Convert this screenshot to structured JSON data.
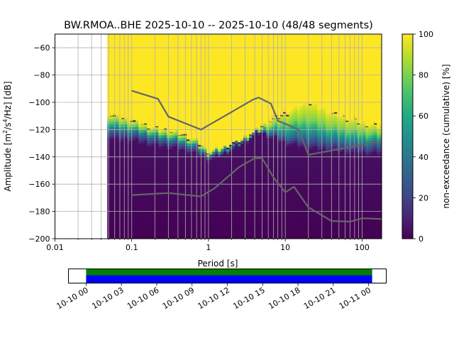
{
  "chart_data": {
    "type": "heatmap",
    "title": "BW.RMOA..BHE   2025-10-10 -- 2025-10-10  (48/48 segments)",
    "xlabel": "Period [s]",
    "ylabel": "Amplitude [m²/s⁴/Hz] [dB]",
    "x_scale": "log",
    "xlim": [
      0.01,
      180
    ],
    "ylim": [
      -200,
      -50
    ],
    "x_ticks": [
      {
        "v": 0.01,
        "label": "0.01"
      },
      {
        "v": 0.1,
        "label": "0.1"
      },
      {
        "v": 1,
        "label": "1"
      },
      {
        "v": 10,
        "label": "10"
      },
      {
        "v": 100,
        "label": "100"
      }
    ],
    "y_ticks": [
      {
        "v": -60,
        "label": "−60"
      },
      {
        "v": -80,
        "label": "−80"
      },
      {
        "v": -100,
        "label": "−100"
      },
      {
        "v": -120,
        "label": "−120"
      },
      {
        "v": -140,
        "label": "−140"
      },
      {
        "v": -160,
        "label": "−160"
      },
      {
        "v": -180,
        "label": "−180"
      },
      {
        "v": -200,
        "label": "−200"
      }
    ],
    "data_min_period": 0.048,
    "grid": true,
    "colorbar": {
      "label": "non-exceedance (cumulative) [%]",
      "range": [
        0,
        100
      ],
      "ticks": [
        {
          "v": 0,
          "label": "0"
        },
        {
          "v": 20,
          "label": "20"
        },
        {
          "v": 40,
          "label": "40"
        },
        {
          "v": 60,
          "label": "60"
        },
        {
          "v": 80,
          "label": "80"
        },
        {
          "v": 100,
          "label": "100"
        }
      ]
    },
    "distribution_boundaries": {
      "x": [
        0.048,
        0.06,
        0.1,
        0.2,
        0.4,
        0.7,
        1.0,
        1.5,
        2.5,
        4.0,
        4.5,
        6.0,
        10,
        20,
        40,
        100,
        180
      ],
      "p10": [
        -125,
        -128,
        -128,
        -132,
        -134,
        -138,
        -142,
        -139,
        -132,
        -124,
        -122,
        -125,
        -130,
        -134,
        -136,
        -138,
        -138
      ],
      "p50": [
        -118,
        -121,
        -122,
        -126,
        -129,
        -133,
        -139,
        -136,
        -130,
        -123,
        -121,
        -122,
        -125,
        -126,
        -128,
        -131,
        -130
      ],
      "p90": [
        -112,
        -114,
        -117,
        -122,
        -125,
        -130,
        -138,
        -134,
        -129,
        -122,
        -120,
        -118,
        -115,
        -113,
        -118,
        -122,
        -123
      ],
      "p100": [
        -108,
        -110,
        -113,
        -119,
        -122,
        -128,
        -136,
        -133,
        -128,
        -121,
        -119,
        -114,
        -108,
        -100,
        -108,
        -115,
        -118
      ]
    },
    "series": [
      {
        "x": [
          0.1,
          0.22,
          0.3,
          0.8,
          3.8,
          4.5,
          6.5,
          8.0,
          15.0,
          20.0,
          180
        ],
        "y": [
          -91.5,
          -97.5,
          -110.5,
          -120.0,
          -98.0,
          -96.5,
          -101.0,
          -113.5,
          -120.0,
          -138.5,
          -128.5
        ]
      },
      {
        "x": [
          0.1,
          0.3,
          0.8,
          1.2,
          2.5,
          4.0,
          5.0,
          7.0,
          10.0,
          13.0,
          20.0,
          40.0,
          70.0,
          100.0,
          180
        ],
        "y": [
          -168.0,
          -166.5,
          -169.0,
          -163.0,
          -147.5,
          -141.0,
          -141.0,
          -155.0,
          -166.0,
          -162.0,
          -177.0,
          -187.0,
          -187.5,
          -185.0,
          -185.5
        ]
      }
    ],
    "period_grid_lines": [
      0.02,
      0.03,
      0.04,
      0.05,
      0.06,
      0.07,
      0.08,
      0.09,
      0.1,
      0.2,
      0.3,
      0.4,
      0.5,
      0.6,
      0.7,
      0.8,
      0.9,
      1,
      2,
      3,
      4,
      5,
      6,
      7,
      8,
      9,
      10,
      20,
      30,
      40,
      50,
      60,
      70,
      80,
      90,
      100
    ],
    "timeline": {
      "range_hours": [
        -1.5,
        25.5
      ],
      "data_hours": [
        0,
        24.3
      ],
      "colors": {
        "upper": "#008000",
        "lower": "#0000ff"
      },
      "ticks": [
        {
          "v": 0,
          "label": "10-10 00"
        },
        {
          "v": 3,
          "label": "10-10 03"
        },
        {
          "v": 6,
          "label": "10-10 06"
        },
        {
          "v": 9,
          "label": "10-10 09"
        },
        {
          "v": 12,
          "label": "10-10 12"
        },
        {
          "v": 15,
          "label": "10-10 15"
        },
        {
          "v": 18,
          "label": "10-10 18"
        },
        {
          "v": 21,
          "label": "10-10 21"
        },
        {
          "v": 24,
          "label": "10-11 00"
        }
      ]
    }
  }
}
